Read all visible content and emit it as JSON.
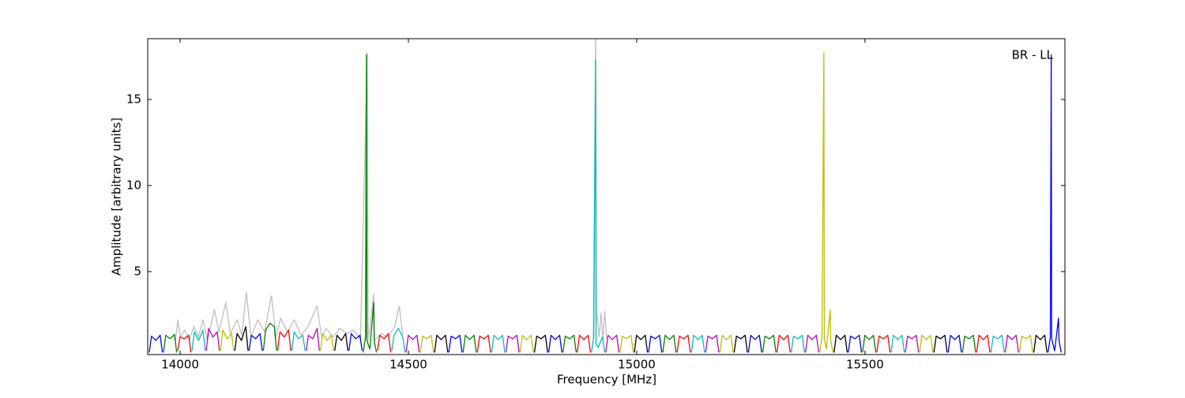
{
  "chart_data": {
    "type": "line",
    "xlabel": "Frequency [MHz]",
    "ylabel": "Amplitude [arbitrary units]",
    "annotation": "BR - LL",
    "xlim": [
      13929,
      15938
    ],
    "xticks": [
      14000,
      14500,
      15000,
      15500
    ],
    "ylim": [
      0.18,
      18.53
    ],
    "yticks": [
      5,
      10,
      15
    ],
    "series": [
      {
        "color": "#bfbfbf",
        "x": [
          13990,
          13995,
          14000,
          14010,
          14020,
          14030,
          14040,
          14050,
          14060,
          14075,
          14085,
          14100,
          14110,
          14125,
          14135,
          14145,
          14155,
          14170,
          14185,
          14200,
          14210,
          14220,
          14235,
          14250,
          14265,
          14280,
          14300,
          14310,
          14320,
          14335,
          14350,
          14365,
          14380,
          14395,
          14410,
          14412,
          14424,
          14426,
          14440,
          14455,
          14470,
          14480,
          14488,
          14492,
          14905,
          14910,
          14912,
          14918,
          14922,
          14926,
          14930,
          14934
        ],
        "values": [
          1.0,
          2.2,
          1.2,
          1.6,
          1.0,
          1.8,
          1.2,
          2.2,
          1.0,
          2.8,
          1.5,
          3.2,
          1.4,
          2.2,
          1.3,
          3.8,
          1.2,
          2.2,
          1.5,
          3.6,
          1.2,
          2.3,
          1.5,
          2.2,
          1.3,
          1.8,
          3.0,
          1.2,
          1.7,
          1.2,
          1.7,
          1.4,
          1.6,
          1.1,
          17.7,
          1.0,
          3.7,
          1.0,
          1.4,
          1.2,
          1.8,
          3.0,
          1.3,
          null,
          1.0,
          19.0,
          2.7,
          1.2,
          2.6,
          1.0,
          2.7,
          1.1
        ]
      },
      {
        "color": "#0000ff",
        "x": [
          13932.25,
          13937.25,
          13946.75,
          13956.25,
          13961.25
        ],
        "values": [
          0.3,
          1.25,
          1.0,
          1.3,
          0.3
        ]
      },
      {
        "color": "#008000",
        "x": [
          13963.5,
          13968.5,
          13978,
          13987.5,
          13992.5
        ],
        "values": [
          0.3,
          1.3,
          1.1,
          1.35,
          0.3
        ]
      },
      {
        "color": "#ff0000",
        "x": [
          13994.75,
          13999.75,
          14009.25,
          14018.75,
          14023.75
        ],
        "values": [
          0.4,
          1.2,
          1.1,
          1.3,
          0.3
        ]
      },
      {
        "color": "#00bfbf",
        "x": [
          14026,
          14031,
          14040.5,
          14050,
          14055
        ],
        "values": [
          0.4,
          1.5,
          1.0,
          1.6,
          0.4
        ]
      },
      {
        "color": "#bf00bf",
        "x": [
          14057.25,
          14062.25,
          14071.75,
          14081.25,
          14086.25
        ],
        "values": [
          0.4,
          1.7,
          1.2,
          1.5,
          0.4
        ]
      },
      {
        "color": "#bfbf00",
        "x": [
          14088.5,
          14093.5,
          14103,
          14112.5,
          14117.5
        ],
        "values": [
          0.4,
          1.6,
          1.1,
          1.4,
          0.4
        ]
      },
      {
        "color": "#000000",
        "x": [
          14119.75,
          14124.75,
          14134.25,
          14143.75,
          14148.75
        ],
        "values": [
          0.4,
          1.4,
          1.0,
          1.8,
          0.4
        ]
      },
      {
        "color": "#0000ff",
        "x": [
          14151,
          14156,
          14165.5,
          14175,
          14180
        ],
        "values": [
          0.4,
          1.3,
          1.1,
          1.4,
          0.4
        ]
      },
      {
        "color": "#008000",
        "x": [
          14182.25,
          14187.25,
          14196.75,
          14206.25,
          14211.25
        ],
        "values": [
          0.4,
          1.6,
          2.0,
          1.8,
          0.4
        ]
      },
      {
        "color": "#ff0000",
        "x": [
          14213.5,
          14218.5,
          14228,
          14237.5,
          14242.5
        ],
        "values": [
          0.4,
          1.5,
          1.2,
          1.6,
          0.4
        ]
      },
      {
        "color": "#00bfbf",
        "x": [
          14244.75,
          14249.75,
          14259.25,
          14268.75,
          14273.75
        ],
        "values": [
          0.4,
          1.5,
          1.1,
          1.3,
          0.4
        ]
      },
      {
        "color": "#bf00bf",
        "x": [
          14276,
          14281,
          14290.5,
          14300,
          14305
        ],
        "values": [
          0.4,
          1.3,
          1.1,
          1.7,
          0.4
        ]
      },
      {
        "color": "#bfbf00",
        "x": [
          14307.25,
          14312.25,
          14321.75,
          14331.25,
          14336.25
        ],
        "values": [
          0.4,
          1.4,
          1.0,
          1.3,
          0.4
        ]
      },
      {
        "color": "#000000",
        "x": [
          14338.5,
          14343.5,
          14353,
          14362.5,
          14367.5
        ],
        "values": [
          0.4,
          1.3,
          1.0,
          1.4,
          0.4
        ]
      },
      {
        "color": "#0000ff",
        "x": [
          14369.75,
          14374.75,
          14384.25,
          14393.75,
          14398.75
        ],
        "values": [
          0.4,
          1.4,
          1.1,
          1.3,
          0.4
        ]
      },
      {
        "color": "#008000",
        "x": [
          14401,
          14406,
          14408,
          14409,
          14415.5,
          14424,
          14425,
          14430
        ],
        "values": [
          0.3,
          1.2,
          17.6,
          1.0,
          0.5,
          3.2,
          1.0,
          0.3
        ]
      },
      {
        "color": "#ff0000",
        "x": [
          14432.25,
          14437.25,
          14446.75,
          14456.25,
          14461.25
        ],
        "values": [
          0.4,
          1.3,
          1.1,
          1.4,
          0.3
        ]
      },
      {
        "color": "#00bfbf",
        "x": [
          14463.5,
          14468.5,
          14478,
          14487.5,
          14492.5
        ],
        "values": [
          0.4,
          1.3,
          1.7,
          1.2,
          0.3
        ]
      },
      {
        "color": "#bf00bf",
        "x": [
          14494.75,
          14499.75,
          14509.25,
          14518.75,
          14523.75
        ],
        "values": [
          0.3,
          1.3,
          1.05,
          1.3,
          0.3
        ]
      },
      {
        "color": "#bfbf00",
        "x": [
          14526,
          14531,
          14540.5,
          14550,
          14555
        ],
        "values": [
          0.3,
          1.25,
          1.1,
          1.3,
          0.3
        ]
      },
      {
        "color": "#000000",
        "x": [
          14557.25,
          14562.25,
          14571.75,
          14581.25,
          14586.25
        ],
        "values": [
          0.3,
          1.3,
          1.05,
          1.3,
          0.3
        ]
      },
      {
        "color": "#0000ff",
        "x": [
          14588.5,
          14593.5,
          14603,
          14612.5,
          14617.5
        ],
        "values": [
          0.3,
          1.25,
          1.1,
          1.3,
          0.3
        ]
      },
      {
        "color": "#008000",
        "x": [
          14619.75,
          14624.75,
          14634.25,
          14643.75,
          14648.75
        ],
        "values": [
          0.3,
          1.3,
          1.05,
          1.3,
          0.3
        ]
      },
      {
        "color": "#ff0000",
        "x": [
          14651,
          14656,
          14665.5,
          14675,
          14680
        ],
        "values": [
          0.3,
          1.25,
          1.1,
          1.3,
          0.3
        ]
      },
      {
        "color": "#00bfbf",
        "x": [
          14682.25,
          14687.25,
          14696.75,
          14706.25,
          14711.25
        ],
        "values": [
          0.3,
          1.3,
          1.05,
          1.3,
          0.3
        ]
      },
      {
        "color": "#bf00bf",
        "x": [
          14713.5,
          14718.5,
          14728,
          14737.5,
          14742.5
        ],
        "values": [
          0.3,
          1.25,
          1.1,
          1.3,
          0.3
        ]
      },
      {
        "color": "#bfbf00",
        "x": [
          14744.75,
          14749.75,
          14759.25,
          14768.75,
          14773.75
        ],
        "values": [
          0.3,
          1.3,
          1.05,
          1.3,
          0.3
        ]
      },
      {
        "color": "#000000",
        "x": [
          14776,
          14781,
          14790.5,
          14800,
          14805
        ],
        "values": [
          0.3,
          1.25,
          1.1,
          1.3,
          0.3
        ]
      },
      {
        "color": "#0000ff",
        "x": [
          14807.25,
          14812.25,
          14821.75,
          14831.25,
          14836.25
        ],
        "values": [
          0.3,
          1.3,
          1.05,
          1.3,
          0.3
        ]
      },
      {
        "color": "#008000",
        "x": [
          14838.5,
          14843.5,
          14853,
          14862.5,
          14867.5
        ],
        "values": [
          0.3,
          1.25,
          1.1,
          1.3,
          0.3
        ]
      },
      {
        "color": "#ff0000",
        "x": [
          14869.75,
          14874.75,
          14884.25,
          14893.75,
          14898.75
        ],
        "values": [
          0.3,
          1.3,
          1.05,
          1.3,
          0.3
        ]
      },
      {
        "color": "#00bfbf",
        "x": [
          14901,
          14906,
          14910,
          14911,
          14915.5,
          14925,
          14930
        ],
        "values": [
          0.3,
          1.2,
          17.3,
          0.8,
          0.6,
          1.2,
          0.3
        ]
      },
      {
        "color": "#bf00bf",
        "x": [
          14932.25,
          14937.25,
          14946.75,
          14956.25,
          14961.25
        ],
        "values": [
          0.3,
          1.3,
          1.05,
          1.3,
          0.3
        ]
      },
      {
        "color": "#bfbf00",
        "x": [
          14963.5,
          14968.5,
          14978,
          14987.5,
          14992.5
        ],
        "values": [
          0.3,
          1.25,
          1.1,
          1.3,
          0.3
        ]
      },
      {
        "color": "#000000",
        "x": [
          14994.75,
          14999.75,
          15009.25,
          15018.75,
          15023.75
        ],
        "values": [
          0.3,
          1.3,
          1.05,
          1.3,
          0.3
        ]
      },
      {
        "color": "#0000ff",
        "x": [
          15026,
          15031,
          15040.5,
          15050,
          15055
        ],
        "values": [
          0.3,
          1.25,
          1.1,
          1.3,
          0.3
        ]
      },
      {
        "color": "#008000",
        "x": [
          15057.25,
          15062.25,
          15071.75,
          15081.25,
          15086.25
        ],
        "values": [
          0.3,
          1.3,
          1.05,
          1.3,
          0.3
        ]
      },
      {
        "color": "#ff0000",
        "x": [
          15088.5,
          15093.5,
          15103,
          15112.5,
          15117.5
        ],
        "values": [
          0.3,
          1.25,
          1.1,
          1.3,
          0.3
        ]
      },
      {
        "color": "#00bfbf",
        "x": [
          15119.75,
          15124.75,
          15134.25,
          15143.75,
          15148.75
        ],
        "values": [
          0.3,
          1.3,
          1.05,
          1.3,
          0.3
        ]
      },
      {
        "color": "#bf00bf",
        "x": [
          15151,
          15156,
          15165.5,
          15175,
          15180
        ],
        "values": [
          0.3,
          1.25,
          1.1,
          1.3,
          0.3
        ]
      },
      {
        "color": "#bfbf00",
        "x": [
          15182.25,
          15187.25,
          15196.75,
          15206.25,
          15211.25
        ],
        "values": [
          0.3,
          1.3,
          1.05,
          1.3,
          0.3
        ]
      },
      {
        "color": "#000000",
        "x": [
          15213.5,
          15218.5,
          15228,
          15237.5,
          15242.5
        ],
        "values": [
          0.3,
          1.25,
          1.1,
          1.3,
          0.3
        ]
      },
      {
        "color": "#0000ff",
        "x": [
          15244.75,
          15249.75,
          15259.25,
          15268.75,
          15273.75
        ],
        "values": [
          0.3,
          1.3,
          1.05,
          1.3,
          0.3
        ]
      },
      {
        "color": "#008000",
        "x": [
          15276,
          15281,
          15290.5,
          15300,
          15305
        ],
        "values": [
          0.3,
          1.25,
          1.1,
          1.3,
          0.3
        ]
      },
      {
        "color": "#ff0000",
        "x": [
          15307.25,
          15312.25,
          15321.75,
          15331.25,
          15336.25
        ],
        "values": [
          0.3,
          1.3,
          1.05,
          1.3,
          0.3
        ]
      },
      {
        "color": "#00bfbf",
        "x": [
          15338.5,
          15343.5,
          15353,
          15362.5,
          15367.5
        ],
        "values": [
          0.3,
          1.25,
          1.1,
          1.3,
          0.3
        ]
      },
      {
        "color": "#bf00bf",
        "x": [
          15369.75,
          15374.75,
          15384.25,
          15393.75,
          15398.75
        ],
        "values": [
          0.3,
          1.3,
          1.05,
          1.3,
          0.3
        ]
      },
      {
        "color": "#bfbf00",
        "x": [
          15401,
          15406,
          15410,
          15411,
          15415.5,
          15424,
          15425,
          15430
        ],
        "values": [
          0.3,
          1.2,
          17.7,
          1.1,
          0.5,
          2.8,
          1.0,
          0.3
        ]
      },
      {
        "color": "#000000",
        "x": [
          15432.25,
          15437.25,
          15446.75,
          15456.25,
          15461.25
        ],
        "values": [
          0.3,
          1.3,
          1.05,
          1.3,
          0.3
        ]
      },
      {
        "color": "#0000ff",
        "x": [
          15463.5,
          15468.5,
          15478,
          15487.5,
          15492.5
        ],
        "values": [
          0.3,
          1.25,
          1.1,
          1.3,
          0.3
        ]
      },
      {
        "color": "#008000",
        "x": [
          15494.75,
          15499.75,
          15509.25,
          15518.75,
          15523.75
        ],
        "values": [
          0.3,
          1.3,
          1.05,
          1.3,
          0.3
        ]
      },
      {
        "color": "#ff0000",
        "x": [
          15526,
          15531,
          15540.5,
          15550,
          15555
        ],
        "values": [
          0.3,
          1.25,
          1.1,
          1.3,
          0.3
        ]
      },
      {
        "color": "#00bfbf",
        "x": [
          15557.25,
          15562.25,
          15571.75,
          15581.25,
          15586.25
        ],
        "values": [
          0.3,
          1.3,
          1.05,
          1.3,
          0.3
        ]
      },
      {
        "color": "#bf00bf",
        "x": [
          15588.5,
          15593.5,
          15603,
          15612.5,
          15617.5
        ],
        "values": [
          0.3,
          1.25,
          1.1,
          1.3,
          0.3
        ]
      },
      {
        "color": "#bfbf00",
        "x": [
          15619.75,
          15624.75,
          15634.25,
          15643.75,
          15648.75
        ],
        "values": [
          0.3,
          1.3,
          1.05,
          1.3,
          0.3
        ]
      },
      {
        "color": "#000000",
        "x": [
          15651,
          15656,
          15665.5,
          15675,
          15680
        ],
        "values": [
          0.3,
          1.25,
          1.1,
          1.3,
          0.3
        ]
      },
      {
        "color": "#0000ff",
        "x": [
          15682.25,
          15687.25,
          15696.75,
          15706.25,
          15711.25
        ],
        "values": [
          0.3,
          1.3,
          1.05,
          1.3,
          0.3
        ]
      },
      {
        "color": "#008000",
        "x": [
          15713.5,
          15718.5,
          15728,
          15737.5,
          15742.5
        ],
        "values": [
          0.3,
          1.25,
          1.1,
          1.3,
          0.3
        ]
      },
      {
        "color": "#ff0000",
        "x": [
          15744.75,
          15749.75,
          15759.25,
          15768.75,
          15773.75
        ],
        "values": [
          0.3,
          1.3,
          1.05,
          1.3,
          0.3
        ]
      },
      {
        "color": "#00bfbf",
        "x": [
          15776,
          15781,
          15790.5,
          15800,
          15805
        ],
        "values": [
          0.3,
          1.25,
          1.1,
          1.3,
          0.3
        ]
      },
      {
        "color": "#bf00bf",
        "x": [
          15807.25,
          15812.25,
          15821.75,
          15831.25,
          15836.25
        ],
        "values": [
          0.3,
          1.3,
          1.05,
          1.3,
          0.3
        ]
      },
      {
        "color": "#bfbf00",
        "x": [
          15838.5,
          15843.5,
          15853,
          15862.5,
          15867.5
        ],
        "values": [
          0.3,
          1.25,
          1.1,
          1.3,
          0.3
        ]
      },
      {
        "color": "#000000",
        "x": [
          15869.75,
          15874.75,
          15884.25,
          15893.75,
          15898.75
        ],
        "values": [
          0.3,
          1.3,
          1.05,
          1.3,
          0.3
        ]
      },
      {
        "color": "#0000ff",
        "x": [
          15901,
          15906,
          15908,
          15909,
          15915.5,
          15924,
          15925,
          15930
        ],
        "values": [
          0.3,
          1.2,
          17.6,
          1.1,
          0.4,
          2.3,
          1.0,
          0.3
        ]
      }
    ]
  }
}
